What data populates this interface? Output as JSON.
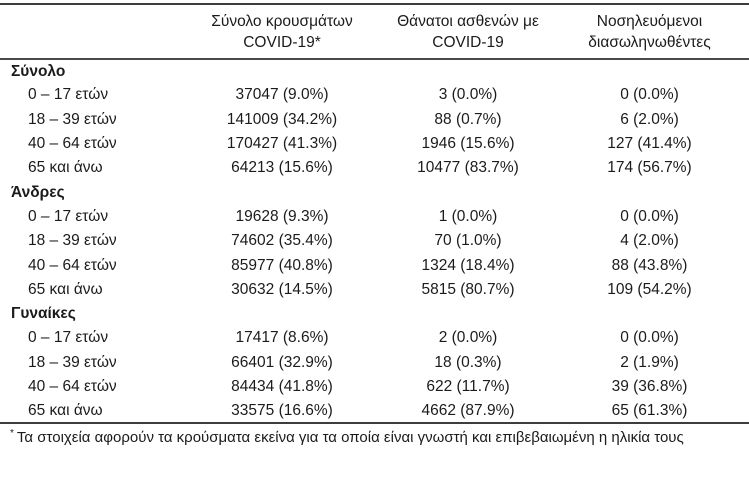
{
  "colors": {
    "text": "#1b1b1b",
    "border": "#3d3d3d",
    "background": "#ffffff"
  },
  "header": {
    "col2": {
      "line1": "Σύνολο κρουσμάτων",
      "line2": "COVID-19*"
    },
    "col3": {
      "line1": "Θάνατοι ασθενών με",
      "line2": "COVID-19"
    },
    "col4": {
      "line1": "Νοσηλευόμενοι",
      "line2": "διασωληνωθέντες"
    }
  },
  "sections": [
    {
      "label": "Σύνολο",
      "rows": [
        {
          "label": "0 – 17 ετών",
          "cases": "37047 (9.0%)",
          "deaths": "3 (0.0%)",
          "intubated": "0 (0.0%)"
        },
        {
          "label": "18 – 39 ετών",
          "cases": "141009 (34.2%)",
          "deaths": "88 (0.7%)",
          "intubated": "6 (2.0%)"
        },
        {
          "label": "40 – 64 ετών",
          "cases": "170427 (41.3%)",
          "deaths": "1946 (15.6%)",
          "intubated": "127 (41.4%)"
        },
        {
          "label": "65 και άνω",
          "cases": "64213 (15.6%)",
          "deaths": "10477 (83.7%)",
          "intubated": "174 (56.7%)"
        }
      ]
    },
    {
      "label": "Άνδρες",
      "rows": [
        {
          "label": "0 – 17 ετών",
          "cases": "19628 (9.3%)",
          "deaths": "1 (0.0%)",
          "intubated": "0 (0.0%)"
        },
        {
          "label": "18 – 39 ετών",
          "cases": "74602 (35.4%)",
          "deaths": "70 (1.0%)",
          "intubated": "4 (2.0%)"
        },
        {
          "label": "40 – 64 ετών",
          "cases": "85977 (40.8%)",
          "deaths": "1324 (18.4%)",
          "intubated": "88 (43.8%)"
        },
        {
          "label": "65 και άνω",
          "cases": "30632 (14.5%)",
          "deaths": "5815 (80.7%)",
          "intubated": "109 (54.2%)"
        }
      ]
    },
    {
      "label": "Γυναίκες",
      "rows": [
        {
          "label": "0 – 17 ετών",
          "cases": "17417 (8.6%)",
          "deaths": "2 (0.0%)",
          "intubated": "0 (0.0%)"
        },
        {
          "label": "18 – 39 ετών",
          "cases": "66401 (32.9%)",
          "deaths": "18 (0.3%)",
          "intubated": "2 (1.9%)"
        },
        {
          "label": "40 – 64 ετών",
          "cases": "84434 (41.8%)",
          "deaths": "622 (11.7%)",
          "intubated": "39 (36.8%)"
        },
        {
          "label": "65 και άνω",
          "cases": "33575 (16.6%)",
          "deaths": "4662 (87.9%)",
          "intubated": "65 (61.3%)"
        }
      ]
    }
  ],
  "footnote": {
    "marker": "*",
    "text": "Τα στοιχεία αφορούν τα κρούσματα εκείνα για τα οποία είναι γνωστή και επιβεβαιωμένη η ηλικία τους"
  }
}
